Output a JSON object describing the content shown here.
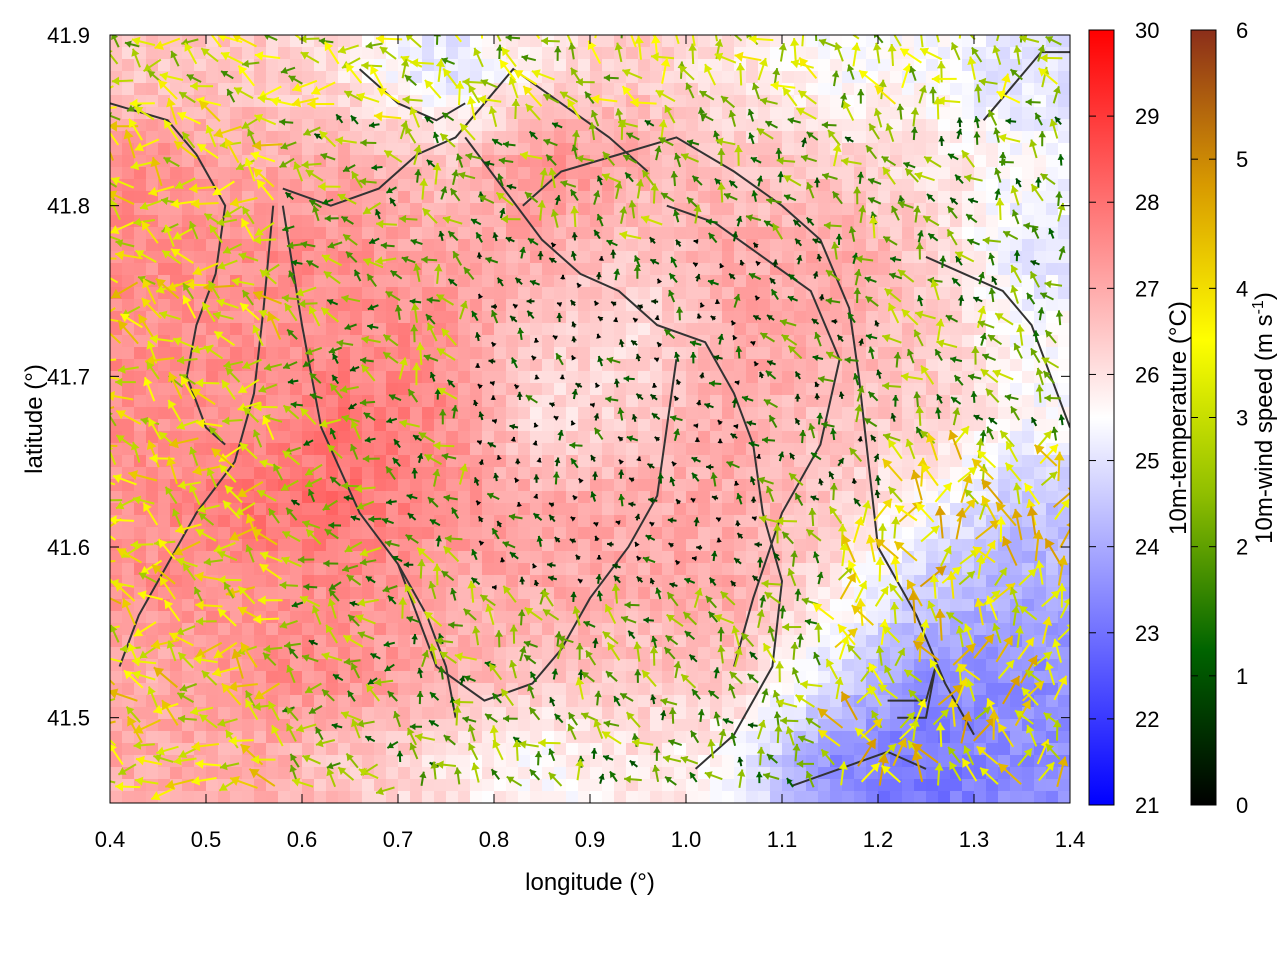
{
  "chart_data": {
    "type": "heatmap",
    "xlabel": "longitude (°)",
    "ylabel": "latitude (°)",
    "xlim": [
      0.4,
      1.4
    ],
    "ylim": [
      41.45,
      41.9
    ],
    "x_ticks": [
      0.4,
      0.5,
      0.6,
      0.7,
      0.8,
      0.9,
      1.0,
      1.1,
      1.2,
      1.3,
      1.4
    ],
    "x_tick_labels": [
      "0.4",
      "0.5",
      "0.6",
      "0.7",
      "0.8",
      "0.9",
      "1.0",
      "1.1",
      "1.2",
      "1.3",
      "1.4"
    ],
    "y_ticks": [
      41.5,
      41.6,
      41.7,
      41.8,
      41.9
    ],
    "y_tick_labels": [
      "41.5",
      "41.6",
      "41.7",
      "41.8",
      "41.9"
    ],
    "grid": false,
    "temperature_colorbar": {
      "label": "10m-temperature (°C)",
      "range": [
        21,
        30
      ],
      "ticks": [
        21,
        22,
        23,
        24,
        25,
        26,
        27,
        28,
        29,
        30
      ],
      "tick_labels": [
        "21",
        "22",
        "23",
        "24",
        "25",
        "26",
        "27",
        "28",
        "29",
        "30"
      ],
      "colors": [
        "#0000ff",
        "#ffffff",
        "#ff0000"
      ]
    },
    "wind_colorbar": {
      "label": "10m-wind speed (m s",
      "label_sup": "-1",
      "label_close": ")",
      "range": [
        0,
        6
      ],
      "ticks": [
        0,
        1,
        2,
        3,
        4,
        5,
        6
      ],
      "tick_labels": [
        "0",
        "1",
        "2",
        "3",
        "4",
        "5",
        "6"
      ],
      "colors": [
        "#000000",
        "#006400",
        "#8fbe00",
        "#ffff00",
        "#d89a00",
        "#8b2e1a"
      ]
    },
    "temperature_field": {
      "lon": [
        0.45,
        0.55,
        0.65,
        0.75,
        0.85,
        0.95,
        1.05,
        1.15,
        1.25,
        1.35
      ],
      "lat": [
        41.875,
        41.825,
        41.775,
        41.725,
        41.675,
        41.625,
        41.575,
        41.525,
        41.475
      ],
      "values": [
        [
          26.5,
          26.5,
          26.0,
          25.0,
          26.0,
          26.5,
          26.0,
          25.5,
          25.5,
          25.0
        ],
        [
          27.5,
          27.0,
          27.0,
          26.5,
          27.5,
          27.0,
          26.5,
          26.5,
          26.0,
          25.5
        ],
        [
          27.5,
          27.5,
          27.5,
          27.0,
          27.0,
          26.5,
          27.0,
          27.0,
          26.5,
          25.0
        ],
        [
          27.5,
          27.5,
          27.5,
          27.5,
          26.5,
          26.0,
          27.0,
          27.0,
          26.5,
          25.5
        ],
        [
          27.5,
          27.5,
          28.0,
          27.5,
          26.0,
          26.5,
          27.0,
          26.5,
          26.5,
          25.5
        ],
        [
          27.5,
          28.0,
          28.0,
          27.5,
          27.0,
          27.0,
          27.0,
          26.5,
          25.5,
          24.5
        ],
        [
          27.5,
          27.5,
          27.5,
          27.0,
          27.0,
          27.0,
          27.0,
          26.0,
          24.5,
          24.0
        ],
        [
          27.0,
          27.5,
          27.5,
          27.0,
          26.5,
          26.5,
          26.5,
          25.0,
          23.5,
          23.5
        ],
        [
          27.0,
          27.0,
          26.5,
          26.0,
          25.5,
          26.0,
          25.5,
          23.5,
          23.0,
          23.5
        ]
      ]
    }
  }
}
